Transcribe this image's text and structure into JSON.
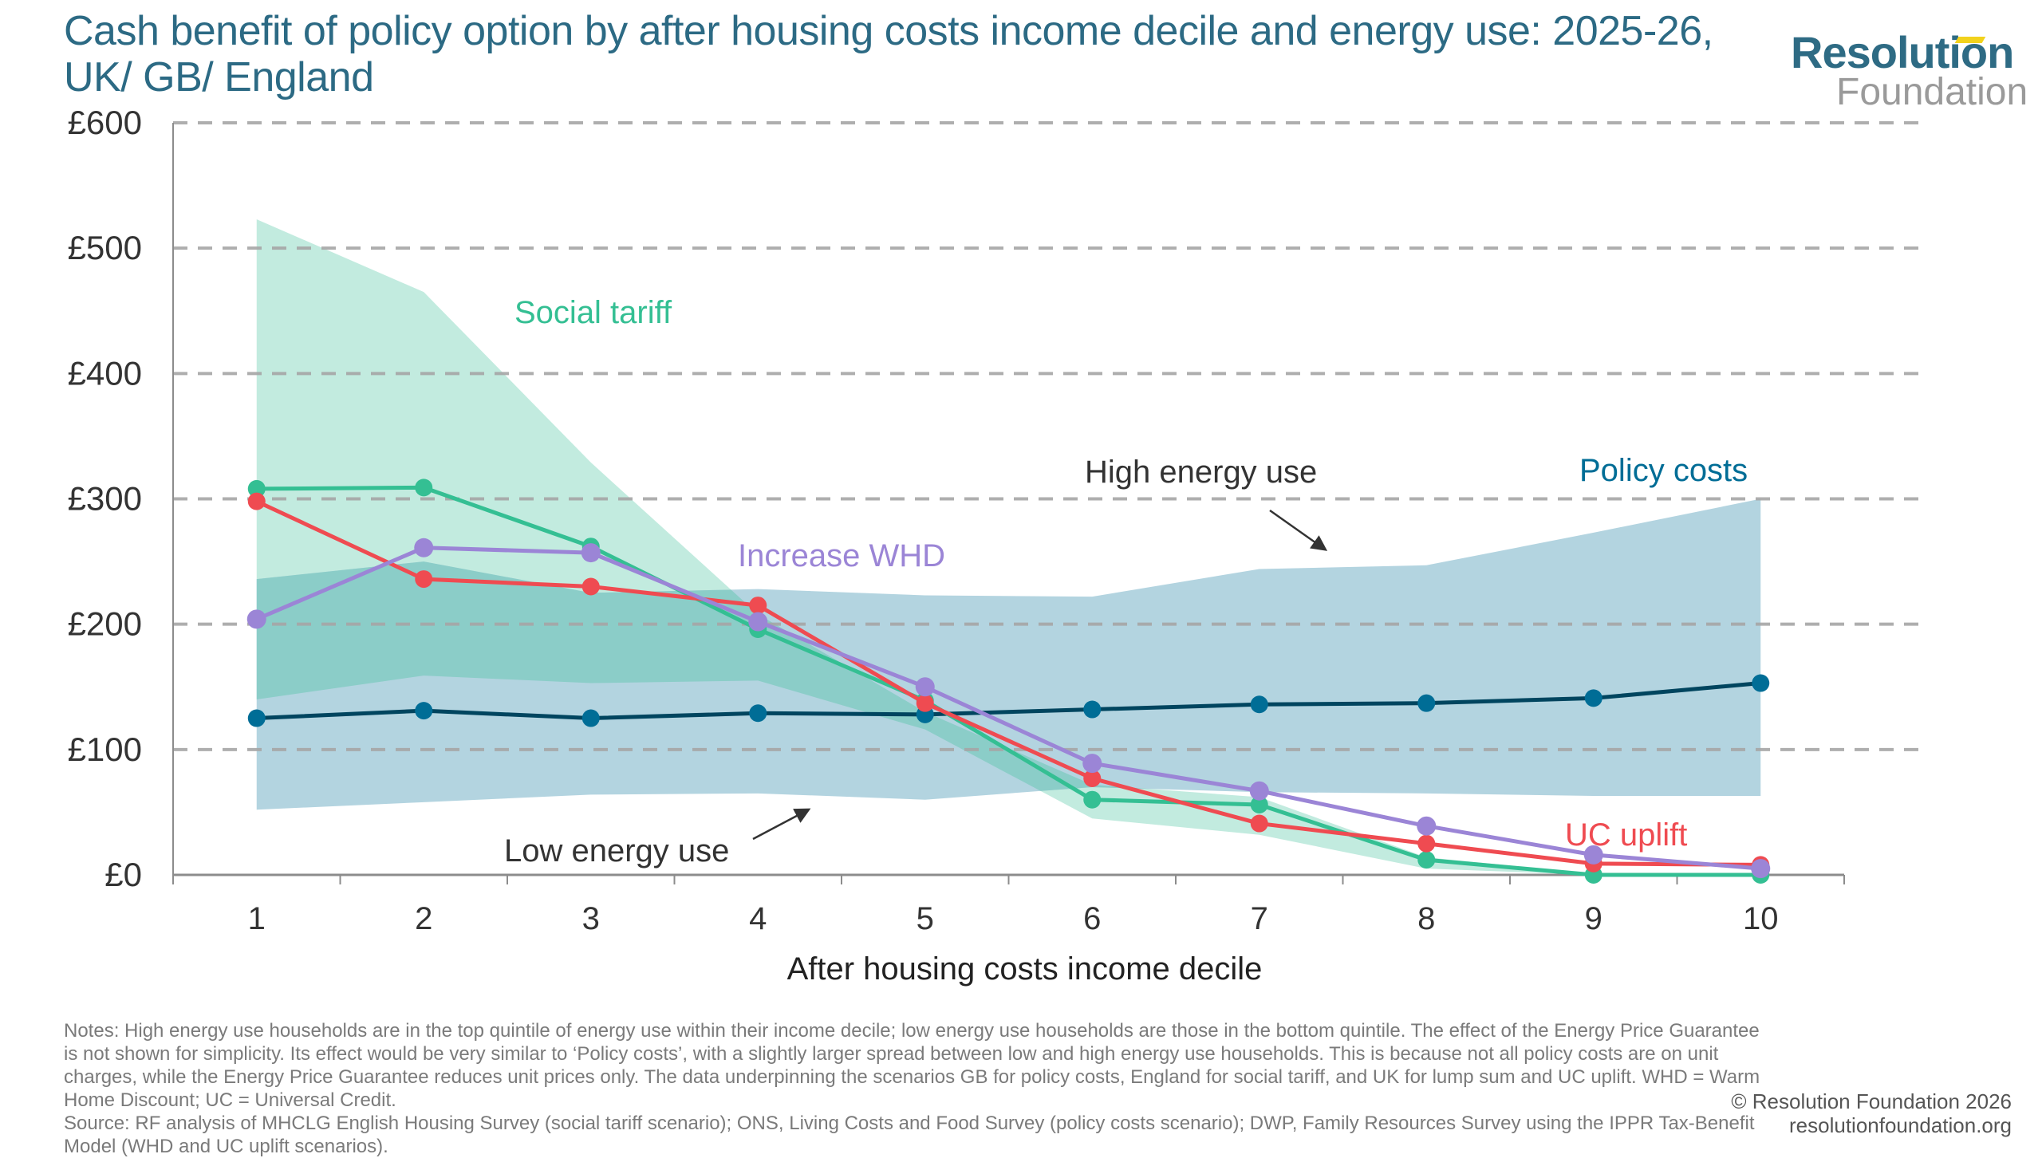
{
  "header": {
    "title": "Cash benefit of policy option by after housing costs income decile and energy use: 2025-26, UK/ GB/ England"
  },
  "logo": {
    "top": "Resolution",
    "bottom": "Foundation"
  },
  "colors": {
    "title": "#2c6a84",
    "social_tariff_line": "#34bf93",
    "social_tariff_band": "#c2ebdf",
    "policy_costs_line": "#00455f",
    "policy_costs_marker": "#006d96",
    "policy_costs_band": "#b3d4e0",
    "overlap_band": "#8bcdc8",
    "uc_uplift": "#ef4b51",
    "increase_whd": "#9b85d6",
    "grid": "#a6a6a6",
    "axis": "#8c8c8c",
    "text": "#333333",
    "notes": "#7a7a7a",
    "logo_accent": "#f2d21c"
  },
  "chart_data": {
    "type": "line",
    "title": "Cash benefit of policy option by after housing costs income decile and energy use: 2025-26, UK/ GB/ England",
    "xlabel": "After housing costs income decile",
    "ylabel": "",
    "categories": [
      "1",
      "2",
      "3",
      "4",
      "5",
      "6",
      "7",
      "8",
      "9",
      "10"
    ],
    "ylim": [
      0,
      600
    ],
    "yticks": [
      0,
      100,
      200,
      300,
      400,
      500,
      600
    ],
    "ytick_labels": [
      "£0",
      "£100",
      "£200",
      "£300",
      "£400",
      "£500",
      "£600"
    ],
    "grid": true,
    "series": [
      {
        "name": "Social tariff",
        "key": "social_tariff",
        "values": [
          308,
          309,
          262,
          196,
          139,
          60,
          56,
          12,
          0,
          0
        ]
      },
      {
        "name": "Policy costs",
        "key": "policy_costs",
        "values": [
          125,
          131,
          125,
          129,
          128,
          132,
          136,
          137,
          141,
          153
        ]
      },
      {
        "name": "UC uplift",
        "key": "uc_uplift",
        "values": [
          298,
          236,
          230,
          215,
          137,
          77,
          41,
          25,
          9,
          8
        ]
      },
      {
        "name": "Increase WHD",
        "key": "increase_whd",
        "values": [
          204,
          261,
          257,
          202,
          150,
          89,
          67,
          39,
          16,
          5
        ]
      }
    ],
    "bands": [
      {
        "name": "Social tariff range (low to high energy use)",
        "key": "social_tariff",
        "lower": [
          140,
          159,
          153,
          155,
          116,
          45,
          32,
          5,
          0,
          0
        ],
        "upper": [
          523,
          465,
          329,
          208,
          130,
          72,
          62,
          14,
          1,
          0
        ]
      },
      {
        "name": "Policy costs range (low to high energy use)",
        "key": "policy_costs",
        "lower": [
          52,
          58,
          64,
          65,
          60,
          70,
          66,
          65,
          63,
          63
        ],
        "upper": [
          236,
          250,
          225,
          228,
          223,
          222,
          244,
          247,
          273,
          300
        ]
      }
    ],
    "annotations": [
      {
        "text": "Social tariff",
        "key": "social_tariff_label"
      },
      {
        "text": "Increase WHD",
        "key": "whd_label"
      },
      {
        "text": "High energy use",
        "key": "high_label",
        "arrow": "down-right"
      },
      {
        "text": "Policy costs",
        "key": "policy_label"
      },
      {
        "text": "Low energy use",
        "key": "low_label",
        "arrow": "up-right"
      },
      {
        "text": "UC uplift",
        "key": "uc_label"
      }
    ]
  },
  "footer": {
    "notes": "Notes: High energy use households are in the top quintile of energy use within their income decile; low energy use households are those in the bottom quintile.  The effect of the Energy Price Guarantee is not shown for simplicity. Its effect would be very similar to ‘Policy costs’, with a slightly larger spread between low and high energy use households. This is because not all policy costs are on unit charges, while the Energy Price Guarantee reduces unit prices only. The data underpinning the scenarios GB for policy costs, England for social tariff, and UK for lump sum and UC uplift. WHD = Warm Home Discount; UC = Universal Credit.",
    "source": "Source: RF analysis of MHCLG English Housing Survey (social tariff scenario); ONS, Living Costs and Food Survey (policy costs scenario); DWP, Family Resources Survey using the IPPR Tax-Benefit Model (WHD and UC uplift scenarios).",
    "copyright": "© Resolution Foundation 2026",
    "website": "resolutionfoundation.org"
  }
}
